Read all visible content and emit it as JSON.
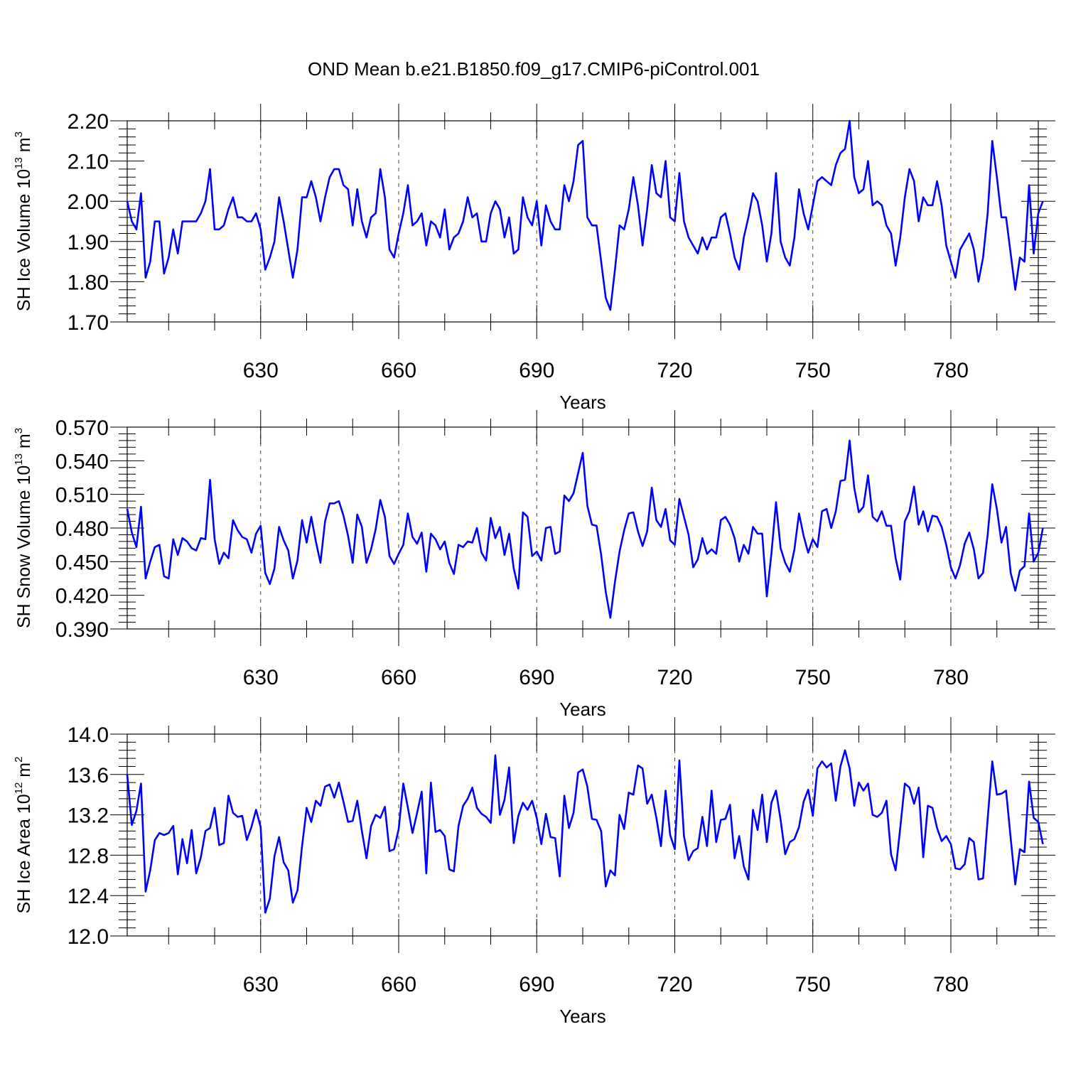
{
  "title": "OND Mean b.e21.B1850.f09_g17.CMIP6-piControl.001",
  "chart_data": [
    {
      "type": "line",
      "ylabel_main": "SH Ice Volume 10",
      "ylabel_exp": "13",
      "ylabel_unit": " m",
      "ylabel_unit_exp": "3",
      "xlabel": "Years",
      "xlim": [
        601,
        799
      ],
      "ylim": [
        1.7,
        2.2
      ],
      "yticks": [
        "1.70",
        "1.80",
        "1.90",
        "2.00",
        "2.10",
        "2.20"
      ],
      "xticks": [
        "630",
        "660",
        "690",
        "720",
        "750",
        "780"
      ],
      "x_start": 601,
      "values": [
        2.0,
        1.95,
        1.93,
        2.02,
        1.81,
        1.85,
        1.95,
        1.95,
        1.82,
        1.86,
        1.93,
        1.87,
        1.95,
        1.95,
        1.95,
        1.95,
        1.97,
        2.0,
        2.08,
        1.93,
        1.93,
        1.94,
        1.98,
        2.01,
        1.96,
        1.96,
        1.95,
        1.95,
        1.97,
        1.93,
        1.83,
        1.86,
        1.9,
        2.01,
        1.95,
        1.88,
        1.81,
        1.88,
        2.01,
        2.01,
        2.05,
        2.01,
        1.95,
        2.01,
        2.06,
        2.08,
        2.08,
        2.04,
        2.03,
        1.94,
        2.03,
        1.95,
        1.91,
        1.96,
        1.97,
        2.08,
        2.01,
        1.88,
        1.86,
        1.92,
        1.97,
        2.04,
        1.94,
        1.95,
        1.97,
        1.89,
        1.95,
        1.94,
        1.91,
        1.98,
        1.88,
        1.91,
        1.92,
        1.95,
        2.01,
        1.96,
        1.97,
        1.9,
        1.9,
        1.97,
        2.0,
        1.98,
        1.91,
        1.96,
        1.87,
        1.88,
        2.01,
        1.96,
        1.94,
        2.0,
        1.89,
        1.99,
        1.95,
        1.93,
        1.93,
        2.04,
        2.0,
        2.05,
        2.14,
        2.15,
        1.96,
        1.94,
        1.94,
        1.85,
        1.76,
        1.73,
        1.83,
        1.94,
        1.93,
        1.98,
        2.06,
        1.99,
        1.89,
        1.98,
        2.09,
        2.02,
        2.01,
        2.1,
        1.96,
        1.95,
        2.07,
        1.95,
        1.91,
        1.89,
        1.87,
        1.91,
        1.88,
        1.91,
        1.91,
        1.96,
        1.97,
        1.92,
        1.86,
        1.83,
        1.91,
        1.96,
        2.02,
        2.0,
        1.94,
        1.85,
        1.92,
        2.07,
        1.9,
        1.86,
        1.84,
        1.91,
        2.03,
        1.97,
        1.93,
        1.99,
        2.05,
        2.06,
        2.05,
        2.04,
        2.09,
        2.12,
        2.13,
        2.2,
        2.06,
        2.02,
        2.03,
        2.1,
        1.99,
        2.0,
        1.99,
        1.94,
        1.92,
        1.84,
        1.91,
        2.01,
        2.08,
        2.05,
        1.95,
        2.01,
        1.99,
        1.99,
        2.05,
        1.99,
        1.89,
        1.85,
        1.81,
        1.88,
        1.9,
        1.92,
        1.88,
        1.8,
        1.86,
        1.97,
        2.15,
        2.06,
        1.96,
        1.96,
        1.87,
        1.78,
        1.86,
        1.85,
        2.04,
        1.87,
        1.97,
        2.0
      ]
    },
    {
      "type": "line",
      "ylabel_main": "SH Snow Volume 10",
      "ylabel_exp": "13",
      "ylabel_unit": " m",
      "ylabel_unit_exp": "3",
      "xlabel": "Years",
      "xlim": [
        601,
        799
      ],
      "ylim": [
        0.39,
        0.57
      ],
      "yticks": [
        "0.390",
        "0.420",
        "0.450",
        "0.480",
        "0.510",
        "0.540",
        "0.570"
      ],
      "xticks": [
        "630",
        "660",
        "690",
        "720",
        "750",
        "780"
      ],
      "x_start": 601,
      "values": [
        0.497,
        0.476,
        0.463,
        0.499,
        0.435,
        0.45,
        0.463,
        0.465,
        0.437,
        0.435,
        0.47,
        0.456,
        0.471,
        0.468,
        0.462,
        0.46,
        0.471,
        0.47,
        0.523,
        0.47,
        0.448,
        0.458,
        0.453,
        0.487,
        0.478,
        0.472,
        0.47,
        0.458,
        0.475,
        0.482,
        0.44,
        0.43,
        0.444,
        0.481,
        0.469,
        0.46,
        0.435,
        0.451,
        0.487,
        0.467,
        0.49,
        0.468,
        0.449,
        0.486,
        0.502,
        0.502,
        0.504,
        0.491,
        0.473,
        0.449,
        0.492,
        0.481,
        0.449,
        0.461,
        0.479,
        0.505,
        0.49,
        0.455,
        0.448,
        0.457,
        0.465,
        0.493,
        0.472,
        0.466,
        0.476,
        0.441,
        0.475,
        0.47,
        0.461,
        0.468,
        0.449,
        0.439,
        0.465,
        0.463,
        0.468,
        0.467,
        0.48,
        0.458,
        0.451,
        0.489,
        0.471,
        0.481,
        0.456,
        0.475,
        0.444,
        0.426,
        0.494,
        0.49,
        0.455,
        0.459,
        0.451,
        0.48,
        0.481,
        0.457,
        0.459,
        0.509,
        0.504,
        0.511,
        0.529,
        0.547,
        0.5,
        0.483,
        0.482,
        0.456,
        0.423,
        0.4,
        0.432,
        0.459,
        0.478,
        0.493,
        0.494,
        0.477,
        0.464,
        0.477,
        0.516,
        0.487,
        0.481,
        0.497,
        0.469,
        0.465,
        0.506,
        0.49,
        0.474,
        0.445,
        0.452,
        0.471,
        0.457,
        0.461,
        0.457,
        0.487,
        0.49,
        0.483,
        0.471,
        0.45,
        0.465,
        0.457,
        0.481,
        0.475,
        0.475,
        0.419,
        0.457,
        0.503,
        0.462,
        0.449,
        0.441,
        0.461,
        0.493,
        0.473,
        0.458,
        0.47,
        0.463,
        0.495,
        0.497,
        0.48,
        0.495,
        0.522,
        0.523,
        0.558,
        0.516,
        0.494,
        0.499,
        0.527,
        0.49,
        0.486,
        0.495,
        0.482,
        0.482,
        0.453,
        0.434,
        0.486,
        0.495,
        0.517,
        0.483,
        0.495,
        0.477,
        0.491,
        0.49,
        0.481,
        0.465,
        0.445,
        0.435,
        0.447,
        0.466,
        0.476,
        0.461,
        0.435,
        0.44,
        0.474,
        0.519,
        0.497,
        0.467,
        0.481,
        0.44,
        0.424,
        0.442,
        0.446,
        0.493,
        0.45,
        0.458,
        0.48
      ]
    },
    {
      "type": "line",
      "ylabel_main": "SH Ice Area 10",
      "ylabel_exp": "12",
      "ylabel_unit": " m",
      "ylabel_unit_exp": "2",
      "xlabel": "Years",
      "xlim": [
        601,
        799
      ],
      "ylim": [
        12.0,
        14.0
      ],
      "yticks": [
        "12.0",
        "12.4",
        "12.8",
        "13.2",
        "13.6",
        "14.0"
      ],
      "xticks": [
        "630",
        "660",
        "690",
        "720",
        "750",
        "780"
      ],
      "x_start": 601,
      "values": [
        13.6,
        13.1,
        13.24,
        13.51,
        12.44,
        12.65,
        12.95,
        13.02,
        13.0,
        13.02,
        13.09,
        12.61,
        12.96,
        12.72,
        13.05,
        12.62,
        12.78,
        13.04,
        13.07,
        13.27,
        12.9,
        12.92,
        13.39,
        13.22,
        13.18,
        13.19,
        12.95,
        13.08,
        13.25,
        13.08,
        12.23,
        12.37,
        12.79,
        12.98,
        12.73,
        12.65,
        12.33,
        12.45,
        12.89,
        13.27,
        13.13,
        13.34,
        13.29,
        13.48,
        13.5,
        13.37,
        13.52,
        13.33,
        13.13,
        13.14,
        13.34,
        13.04,
        12.77,
        13.09,
        13.2,
        13.17,
        13.28,
        12.84,
        12.86,
        13.06,
        13.51,
        13.27,
        13.02,
        13.22,
        13.43,
        12.62,
        13.52,
        13.03,
        13.05,
        12.99,
        12.66,
        12.64,
        13.09,
        13.29,
        13.36,
        13.47,
        13.27,
        13.21,
        13.18,
        13.12,
        13.79,
        13.2,
        13.35,
        13.67,
        12.92,
        13.19,
        13.32,
        13.25,
        13.34,
        13.17,
        12.91,
        13.21,
        12.98,
        12.97,
        12.59,
        13.39,
        13.07,
        13.22,
        13.62,
        13.65,
        13.48,
        13.16,
        13.15,
        13.04,
        12.49,
        12.65,
        12.6,
        13.2,
        13.06,
        13.42,
        13.4,
        13.69,
        13.66,
        13.31,
        13.4,
        13.17,
        12.89,
        13.44,
        13.0,
        12.86,
        13.74,
        12.99,
        12.75,
        12.84,
        12.87,
        13.18,
        12.89,
        13.44,
        12.93,
        13.15,
        13.16,
        13.3,
        12.77,
        12.99,
        12.69,
        12.56,
        13.25,
        13.05,
        13.4,
        12.93,
        13.32,
        13.44,
        13.15,
        12.81,
        12.93,
        12.96,
        13.08,
        13.33,
        13.45,
        13.19,
        13.66,
        13.73,
        13.67,
        13.71,
        13.34,
        13.68,
        13.84,
        13.66,
        13.29,
        13.52,
        13.44,
        13.51,
        13.2,
        13.18,
        13.22,
        13.34,
        12.81,
        12.65,
        13.07,
        13.51,
        13.47,
        13.31,
        13.47,
        12.78,
        13.29,
        13.27,
        13.07,
        12.94,
        12.99,
        12.91,
        12.67,
        12.66,
        12.71,
        12.97,
        12.93,
        12.56,
        12.57,
        13.16,
        13.73,
        13.4,
        13.41,
        13.44,
        12.97,
        12.51,
        12.86,
        12.83,
        13.53,
        13.17,
        13.13,
        12.91
      ]
    }
  ]
}
